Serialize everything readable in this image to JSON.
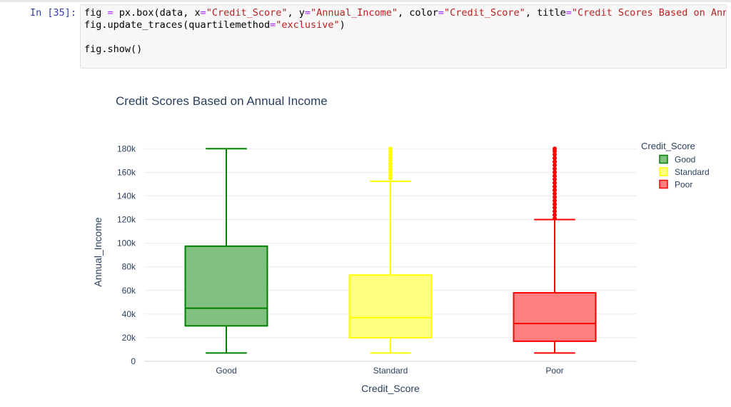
{
  "notebook": {
    "prompt": "In [35]:",
    "code_lines": [
      [
        {
          "t": "fig "
        },
        {
          "t": "=",
          "c": "op"
        },
        {
          "t": " px.box(data, x"
        },
        {
          "t": "=",
          "c": "op"
        },
        {
          "t": "\"Credit_Score\"",
          "c": "str"
        },
        {
          "t": ", y"
        },
        {
          "t": "=",
          "c": "op"
        },
        {
          "t": "\"Annual_Income\"",
          "c": "str"
        },
        {
          "t": ", color"
        },
        {
          "t": "=",
          "c": "op"
        },
        {
          "t": "\"Credit_Score\"",
          "c": "str"
        },
        {
          "t": ", title"
        },
        {
          "t": "=",
          "c": "op"
        },
        {
          "t": "\"Credit Scores Based on Annual I",
          "c": "str"
        }
      ],
      [
        {
          "t": "fig.update_traces(quartilemethod"
        },
        {
          "t": "=",
          "c": "op"
        },
        {
          "t": "\"exclusive\"",
          "c": "str"
        },
        {
          "t": ")"
        }
      ],
      [
        {
          "t": ""
        }
      ],
      [
        {
          "t": "fig.show()"
        }
      ]
    ]
  },
  "chart_data": {
    "type": "box",
    "title": "Credit Scores Based on Annual Income",
    "xlabel": "Credit_Score",
    "ylabel": "Annual_Income",
    "ylim": [
      0,
      185000
    ],
    "yticks": [
      {
        "v": 0,
        "label": "0"
      },
      {
        "v": 20000,
        "label": "20k"
      },
      {
        "v": 40000,
        "label": "40k"
      },
      {
        "v": 60000,
        "label": "60k"
      },
      {
        "v": 80000,
        "label": "80k"
      },
      {
        "v": 100000,
        "label": "100k"
      },
      {
        "v": 120000,
        "label": "120k"
      },
      {
        "v": 140000,
        "label": "140k"
      },
      {
        "v": 160000,
        "label": "160k"
      },
      {
        "v": 180000,
        "label": "180k"
      }
    ],
    "grid": true,
    "legend": {
      "title": "Credit_Score",
      "position": "right"
    },
    "categories": [
      "Good",
      "Standard",
      "Poor"
    ],
    "series": [
      {
        "name": "Good",
        "color": "#008000",
        "fill": "#80c080",
        "min": 7000,
        "q1": 30000,
        "median": 45000,
        "q3": 97500,
        "max": 180000,
        "outliers": []
      },
      {
        "name": "Standard",
        "color": "#ffff00",
        "fill": "#ffff80",
        "min": 7000,
        "q1": 20000,
        "median": 37000,
        "q3": 73000,
        "max": 152500,
        "outliers": [
          155000,
          157500,
          160000,
          162500,
          165000,
          167500,
          170000,
          172500,
          175000,
          177500,
          180000
        ]
      },
      {
        "name": "Poor",
        "color": "#ff0000",
        "fill": "#ff8080",
        "min": 7000,
        "q1": 17000,
        "median": 32000,
        "q3": 58000,
        "max": 120000,
        "outliers": [
          121000,
          124000,
          127000,
          130000,
          133000,
          136000,
          139000,
          142000,
          145000,
          148000,
          151000,
          154000,
          157000,
          160000,
          163000,
          166000,
          169000,
          172000,
          175000,
          178000,
          180000
        ]
      }
    ]
  }
}
